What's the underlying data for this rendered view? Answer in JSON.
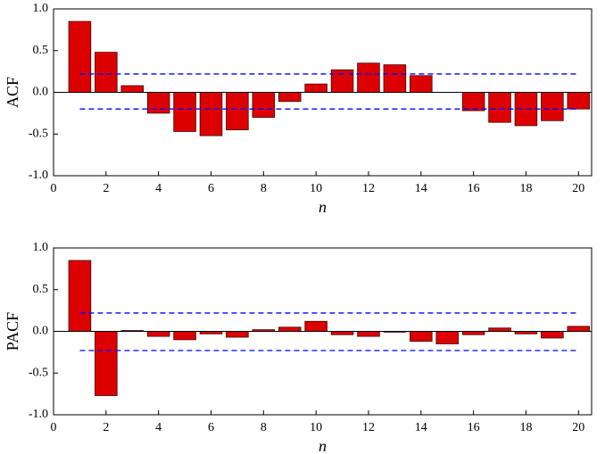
{
  "chart_data": [
    {
      "type": "bar",
      "y_label": "ACF",
      "x_label": "n",
      "x": [
        1,
        2,
        3,
        4,
        5,
        6,
        7,
        8,
        9,
        10,
        11,
        12,
        13,
        14,
        15,
        16,
        17,
        18,
        19,
        20
      ],
      "values": [
        0.85,
        0.48,
        0.08,
        -0.25,
        -0.47,
        -0.52,
        -0.45,
        -0.3,
        -0.11,
        0.1,
        0.27,
        0.35,
        0.33,
        0.2,
        0,
        -0.22,
        -0.36,
        -0.4,
        -0.34,
        -0.2
      ],
      "color": "#dd0000",
      "edge_color": "#400000",
      "bounds": [
        0.22,
        -0.2
      ],
      "bound_color": "#0000ff",
      "xlim": [
        0,
        20.5
      ],
      "ylim": [
        -1,
        1
      ],
      "xticks": [
        0,
        2,
        4,
        6,
        8,
        10,
        12,
        14,
        16,
        18,
        20
      ],
      "yticks": [
        {
          "value": 1,
          "label": "1.0"
        },
        {
          "value": 0.5,
          "label": "0.5"
        },
        {
          "value": 0,
          "label": "0.0"
        },
        {
          "value": -0.5,
          "label": "-0.5"
        },
        {
          "value": -1,
          "label": "-1.0"
        }
      ]
    },
    {
      "type": "bar",
      "y_label": "PACF",
      "x_label": "n",
      "x": [
        1,
        2,
        3,
        4,
        5,
        6,
        7,
        8,
        9,
        10,
        11,
        12,
        13,
        14,
        15,
        16,
        17,
        18,
        19,
        20
      ],
      "values": [
        0.85,
        -0.77,
        0.01,
        -0.06,
        -0.1,
        -0.03,
        -0.07,
        0.02,
        0.05,
        0.12,
        -0.04,
        -0.06,
        -0.01,
        -0.12,
        -0.15,
        -0.04,
        0.04,
        -0.03,
        -0.08,
        0.06
      ],
      "color": "#dd0000",
      "edge_color": "#400000",
      "bounds": [
        0.22,
        -0.23
      ],
      "bound_color": "#0000ff",
      "xlim": [
        0,
        20.5
      ],
      "ylim": [
        -1,
        1
      ],
      "xticks": [
        0,
        2,
        4,
        6,
        8,
        10,
        12,
        14,
        16,
        18,
        20
      ],
      "yticks": [
        {
          "value": 1,
          "label": "1.0"
        },
        {
          "value": 0.5,
          "label": "0.5"
        },
        {
          "value": 0,
          "label": "0.0"
        },
        {
          "value": -0.5,
          "label": "-0.5"
        },
        {
          "value": -1,
          "label": "-1.0"
        }
      ]
    }
  ]
}
